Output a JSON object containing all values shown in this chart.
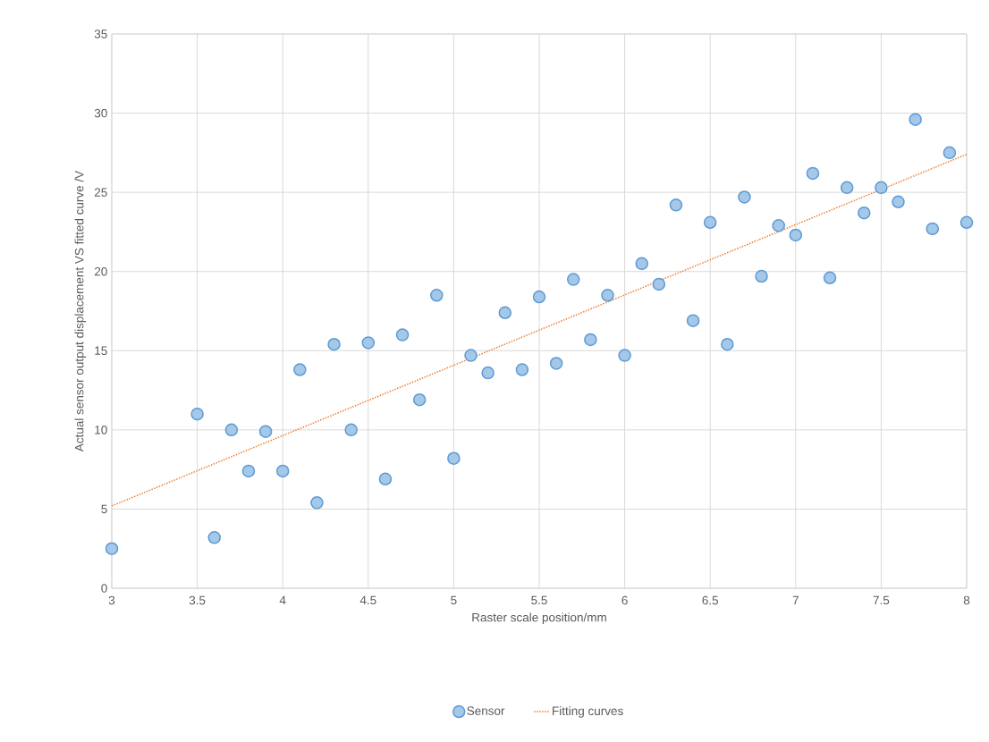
{
  "chart_data": {
    "type": "scatter",
    "xlabel": "Raster scale position/mm",
    "ylabel": "Actual sensor output displacement VS fitted curve /V",
    "x": [
      3,
      3.5,
      3.6,
      3.7,
      3.8,
      3.9,
      4.0,
      4.1,
      4.2,
      4.3,
      4.4,
      4.5,
      4.6,
      4.7,
      4.8,
      4.9,
      5.0,
      5.1,
      5.2,
      5.3,
      5.4,
      5.5,
      5.6,
      5.7,
      5.8,
      5.9,
      6.0,
      6.1,
      6.2,
      6.3,
      6.4,
      6.5,
      6.6,
      6.7,
      6.8,
      6.9,
      7.0,
      7.1,
      7.2,
      7.3,
      7.4,
      7.5,
      7.6,
      7.7,
      7.8,
      7.9,
      8.0
    ],
    "series": [
      {
        "name": "Sensor",
        "color": "#5b9bd5",
        "marker": "circle",
        "values": [
          2.5,
          11.0,
          3.2,
          10.0,
          7.4,
          9.9,
          7.4,
          13.8,
          5.4,
          15.4,
          10.0,
          15.5,
          6.9,
          16.0,
          11.9,
          18.5,
          8.2,
          14.7,
          13.6,
          17.4,
          13.8,
          18.4,
          14.2,
          19.5,
          15.7,
          18.5,
          14.7,
          20.5,
          19.2,
          24.2,
          16.9,
          23.1,
          15.4,
          24.7,
          19.7,
          22.9,
          22.3,
          26.2,
          19.6,
          25.3,
          23.7,
          25.3,
          24.4,
          29.6,
          22.7,
          27.5,
          23.1
        ]
      },
      {
        "name": "Fitting curves",
        "type": "line",
        "color": "#ed7d31",
        "line_style": "dotted",
        "marker": "none",
        "x": [
          3,
          8
        ],
        "values": [
          5.2,
          27.4
        ]
      }
    ],
    "xlim": [
      3,
      8
    ],
    "ylim": [
      0,
      35
    ],
    "xticks": [
      3,
      3.5,
      4,
      4.5,
      5,
      5.5,
      6,
      6.5,
      7,
      7.5,
      8
    ],
    "yticks": [
      0,
      5,
      10,
      15,
      20,
      25,
      30,
      35
    ],
    "grid": true,
    "legend": "bottom"
  }
}
